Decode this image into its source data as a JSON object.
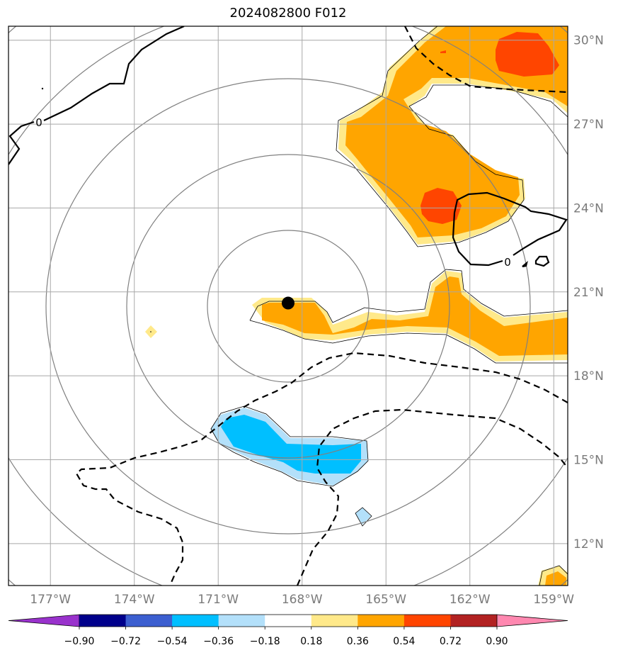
{
  "title": "2024082800 F012",
  "map": {
    "lon_range": [
      -178.5,
      -158.5
    ],
    "lat_range": [
      10.5,
      30.5
    ],
    "lon_ticks": [
      -177,
      -174,
      -171,
      -168,
      -165,
      -162,
      -159
    ],
    "lon_tick_labels": [
      "177°W",
      "174°W",
      "171°W",
      "168°W",
      "165°W",
      "162°W",
      "159°W"
    ],
    "lat_ticks": [
      12,
      15,
      18,
      21,
      24,
      27,
      30
    ],
    "lat_tick_labels": [
      "12°N",
      "15°N",
      "18°N",
      "21°N",
      "24°N",
      "27°N",
      "30°N"
    ],
    "storm_center": {
      "lon": -168.5,
      "lat": 20.6
    },
    "zero_contour_label": "0",
    "colors": {
      "grid": "#a8a8a8",
      "range_rings": "#808080",
      "orange": "#ffa500",
      "light_yellow": "#ffe98a",
      "red_orange": "#ff4500",
      "deep_sky_blue": "#00bfff",
      "light_blue": "#b3e0fa"
    }
  },
  "colorbar": {
    "ticks": [
      "−0.90",
      "−0.72",
      "−0.54",
      "−0.36",
      "−0.18",
      "0.18",
      "0.36",
      "0.54",
      "0.72",
      "0.90"
    ],
    "bins": [
      "#9932cc",
      "#00008b",
      "#3c5fd0",
      "#00bfff",
      "#b3e0fa",
      "#ffffff",
      "#ffe98a",
      "#ffa500",
      "#ff4500",
      "#b22222",
      "#ff88b0"
    ],
    "extend": "both"
  }
}
